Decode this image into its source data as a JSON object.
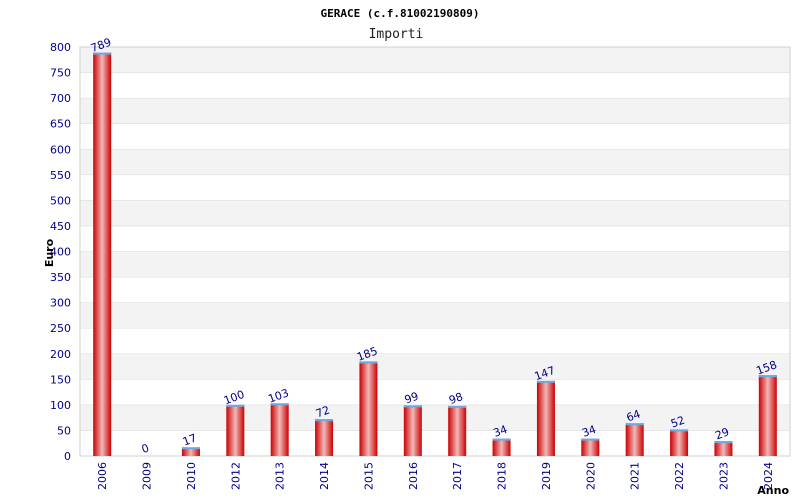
{
  "chart_data": {
    "type": "bar",
    "title": "GERACE (c.f.81002190809)",
    "subtitle": "Importi",
    "xlabel": "Anno",
    "ylabel": "Euro",
    "ylim": [
      0,
      800
    ],
    "ytick_step": 50,
    "yticks": [
      "0",
      "50",
      "100",
      "150",
      "200",
      "250",
      "300",
      "350",
      "400",
      "450",
      "500",
      "550",
      "600",
      "650",
      "700",
      "750",
      "800"
    ],
    "grid": true,
    "legend": "none",
    "categories": [
      "2006",
      "2009",
      "2010",
      "2012",
      "2013",
      "2014",
      "2015",
      "2016",
      "2017",
      "2018",
      "2019",
      "2020",
      "2021",
      "2022",
      "2023",
      "2024"
    ],
    "values": [
      789,
      0,
      17,
      100,
      103,
      72,
      185,
      99,
      98,
      34,
      147,
      34,
      64,
      52,
      29,
      158
    ],
    "value_labels": [
      "789",
      "0",
      "17",
      "100",
      "103",
      "72",
      "185",
      "99",
      "98",
      "34",
      "147",
      "34",
      "64",
      "52",
      "29",
      "158"
    ],
    "colors": {
      "bar_edge": "#cc0000",
      "bar_mid": "#f2b8b8",
      "bar_top": "#6fa8dc",
      "band_light": "#ffffff",
      "band_dark": "#f3f3f3",
      "tick_text": "#00008b"
    }
  }
}
